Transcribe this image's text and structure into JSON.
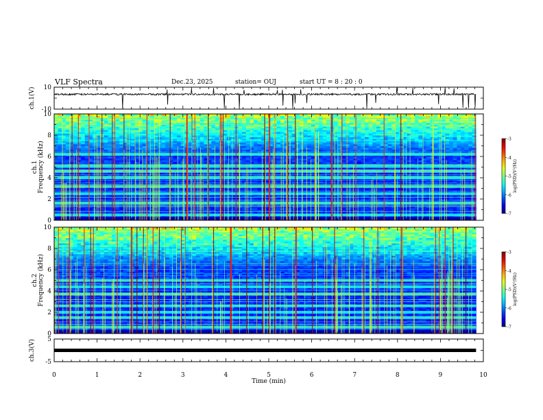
{
  "header": {
    "title": "VLF Spectra",
    "date": "Dec.23, 2025",
    "station": "station= OUJ",
    "start_ut": "start UT =  8 : 20 : 0"
  },
  "chart_data": [
    {
      "type": "line",
      "name": "ch1-waveform",
      "ylabel": "ch.1(V)",
      "ylim": [
        -10,
        10
      ],
      "yticks": [
        "10",
        "-10"
      ],
      "baseline_v": 3.5,
      "data_end_min": 9.83
    },
    {
      "type": "heatmap",
      "name": "ch1-spectrogram",
      "ylabel_top": "ch.1",
      "ylabel": "Frequency (kHz)",
      "ylim": [
        0,
        10
      ],
      "yticks": [
        "0",
        "2",
        "4",
        "6",
        "8",
        "10"
      ],
      "colorbar": {
        "label": "log(PSD)(V²/Hz)",
        "range": [
          -7,
          -3
        ],
        "ticks": [
          "-3",
          "-4",
          "-5",
          "-6",
          "-7"
        ]
      },
      "bands_khz": [
        0.5,
        1.6,
        2.5,
        3.2,
        4.0,
        4.6,
        5.1,
        6.2
      ],
      "data_end_min": 9.83
    },
    {
      "type": "heatmap",
      "name": "ch2-spectrogram",
      "ylabel_top": "ch.2",
      "ylabel": "Frequency (kHz)",
      "ylim": [
        0,
        10
      ],
      "yticks": [
        "0",
        "2",
        "4",
        "6",
        "8",
        "10"
      ],
      "colorbar": {
        "label": "log(PSD)(V²/Hz)",
        "range": [
          -7,
          -3
        ],
        "ticks": [
          "-3",
          "-4",
          "-5",
          "-6",
          "-7"
        ]
      },
      "bands_khz": [
        0.6,
        1.5,
        2.0,
        2.6,
        3.7,
        4.4,
        5.0
      ],
      "data_end_min": 9.83
    },
    {
      "type": "line",
      "name": "ch3-waveform",
      "ylabel": "ch.3(V)",
      "ylim": [
        -5,
        5
      ],
      "yticks": [
        "5",
        "-5"
      ],
      "baseline_v": 0,
      "data_end_min": 9.83
    }
  ],
  "xaxis": {
    "label": "Time (min)",
    "range": [
      0,
      10
    ],
    "ticks": [
      "0",
      "1",
      "2",
      "3",
      "4",
      "5",
      "6",
      "7",
      "8",
      "9",
      "10"
    ]
  }
}
